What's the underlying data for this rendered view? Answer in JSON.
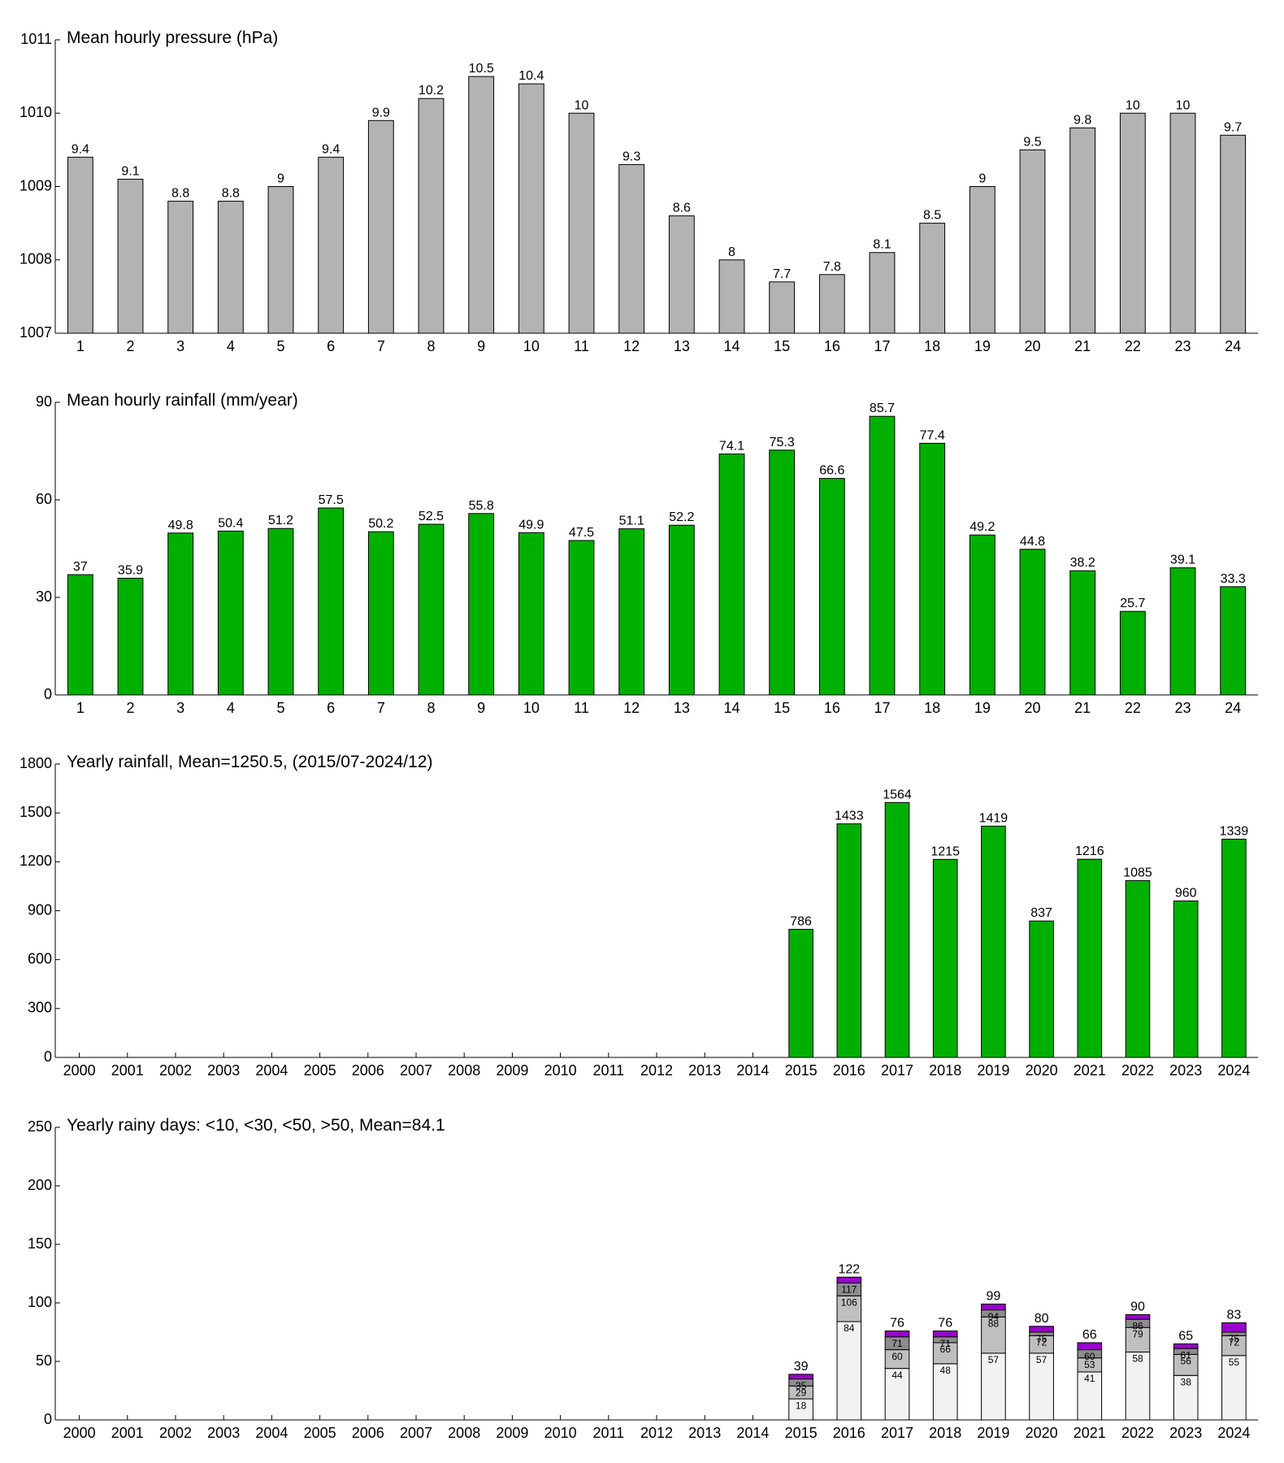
{
  "chart_data": [
    {
      "type": "bar",
      "title": "Mean hourly pressure (hPa)",
      "categories": [
        "1",
        "2",
        "3",
        "4",
        "5",
        "6",
        "7",
        "8",
        "9",
        "10",
        "11",
        "12",
        "13",
        "14",
        "15",
        "16",
        "17",
        "18",
        "19",
        "20",
        "21",
        "22",
        "23",
        "24"
      ],
      "values": [
        1009.4,
        1009.1,
        1008.8,
        1008.8,
        1009.0,
        1009.4,
        1009.9,
        1010.2,
        1010.5,
        1010.4,
        1010.0,
        1009.3,
        1008.6,
        1008.0,
        1007.7,
        1007.8,
        1008.1,
        1008.5,
        1009.0,
        1009.5,
        1009.8,
        1010.0,
        1010.0,
        1009.7
      ],
      "value_labels": [
        "9.4",
        "9.1",
        "8.8",
        "8.8",
        "9",
        "9.4",
        "9.9",
        "10.2",
        "10.5",
        "10.4",
        "10",
        "9.3",
        "8.6",
        "8",
        "7.7",
        "7.8",
        "8.1",
        "8.5",
        "9",
        "9.5",
        "9.8",
        "10",
        "10",
        "9.7"
      ],
      "color": "#b3b3b3",
      "ylim": [
        1007,
        1011
      ],
      "yticks": [
        1007,
        1008,
        1009,
        1010,
        1011
      ]
    },
    {
      "type": "bar",
      "title": "Mean hourly rainfall (mm/year)",
      "categories": [
        "1",
        "2",
        "3",
        "4",
        "5",
        "6",
        "7",
        "8",
        "9",
        "10",
        "11",
        "12",
        "13",
        "14",
        "15",
        "16",
        "17",
        "18",
        "19",
        "20",
        "21",
        "22",
        "23",
        "24"
      ],
      "values": [
        37,
        35.9,
        49.8,
        50.4,
        51.2,
        57.5,
        50.2,
        52.5,
        55.8,
        49.9,
        47.5,
        51.1,
        52.2,
        74.1,
        75.3,
        66.6,
        85.7,
        77.4,
        49.2,
        44.8,
        38.2,
        25.7,
        39.1,
        33.3
      ],
      "color": "#00b000",
      "ylim": [
        0,
        90
      ],
      "yticks": [
        0,
        30,
        60,
        90
      ]
    },
    {
      "type": "bar",
      "title": "Yearly rainfall, Mean=1250.5, (2015/07-2024/12)",
      "categories": [
        "2000",
        "2001",
        "2002",
        "2003",
        "2004",
        "2005",
        "2006",
        "2007",
        "2008",
        "2009",
        "2010",
        "2011",
        "2012",
        "2013",
        "2014",
        "2015",
        "2016",
        "2017",
        "2018",
        "2019",
        "2020",
        "2021",
        "2022",
        "2023",
        "2024"
      ],
      "values": [
        null,
        null,
        null,
        null,
        null,
        null,
        null,
        null,
        null,
        null,
        null,
        null,
        null,
        null,
        null,
        786,
        1433,
        1564,
        1215,
        1419,
        837,
        1216,
        1085,
        960,
        1339
      ],
      "color": "#00b000",
      "ylim": [
        0,
        1800
      ],
      "yticks": [
        0,
        300,
        600,
        900,
        1200,
        1500,
        1800
      ]
    },
    {
      "type": "stacked_bar",
      "title": "Yearly rainy days: <10, <30, <50, >50, Mean=84.1",
      "categories": [
        "2000",
        "2001",
        "2002",
        "2003",
        "2004",
        "2005",
        "2006",
        "2007",
        "2008",
        "2009",
        "2010",
        "2011",
        "2012",
        "2013",
        "2014",
        "2015",
        "2016",
        "2017",
        "2018",
        "2019",
        "2020",
        "2021",
        "2022",
        "2023",
        "2024"
      ],
      "series": [
        {
          "name": "<10",
          "color": "#f2f2f2",
          "values": [
            null,
            null,
            null,
            null,
            null,
            null,
            null,
            null,
            null,
            null,
            null,
            null,
            null,
            null,
            null,
            18,
            84,
            44,
            48,
            57,
            57,
            41,
            58,
            38,
            55
          ]
        },
        {
          "name": "<30",
          "color": "#bfbfbf",
          "values": [
            null,
            null,
            null,
            null,
            null,
            null,
            null,
            null,
            null,
            null,
            null,
            null,
            null,
            null,
            null,
            11,
            22,
            16,
            18,
            31,
            15,
            12,
            21,
            18,
            17
          ]
        },
        {
          "name": "<50",
          "color": "#8c8c8c",
          "values": [
            null,
            null,
            null,
            null,
            null,
            null,
            null,
            null,
            null,
            null,
            null,
            null,
            null,
            null,
            null,
            6,
            11,
            11,
            5,
            6,
            3,
            7,
            7,
            5,
            3
          ]
        },
        {
          "name": ">50",
          "color": "#9900cc",
          "values": [
            null,
            null,
            null,
            null,
            null,
            null,
            null,
            null,
            null,
            null,
            null,
            null,
            null,
            null,
            null,
            4,
            5,
            5,
            5,
            5,
            5,
            6,
            4,
            4,
            8
          ]
        }
      ],
      "totals": [
        null,
        null,
        null,
        null,
        null,
        null,
        null,
        null,
        null,
        null,
        null,
        null,
        null,
        null,
        null,
        39,
        122,
        76,
        76,
        99,
        80,
        66,
        90,
        65,
        83
      ],
      "ylim": [
        0,
        250
      ],
      "yticks": [
        0,
        50,
        100,
        150,
        200,
        250
      ]
    }
  ]
}
